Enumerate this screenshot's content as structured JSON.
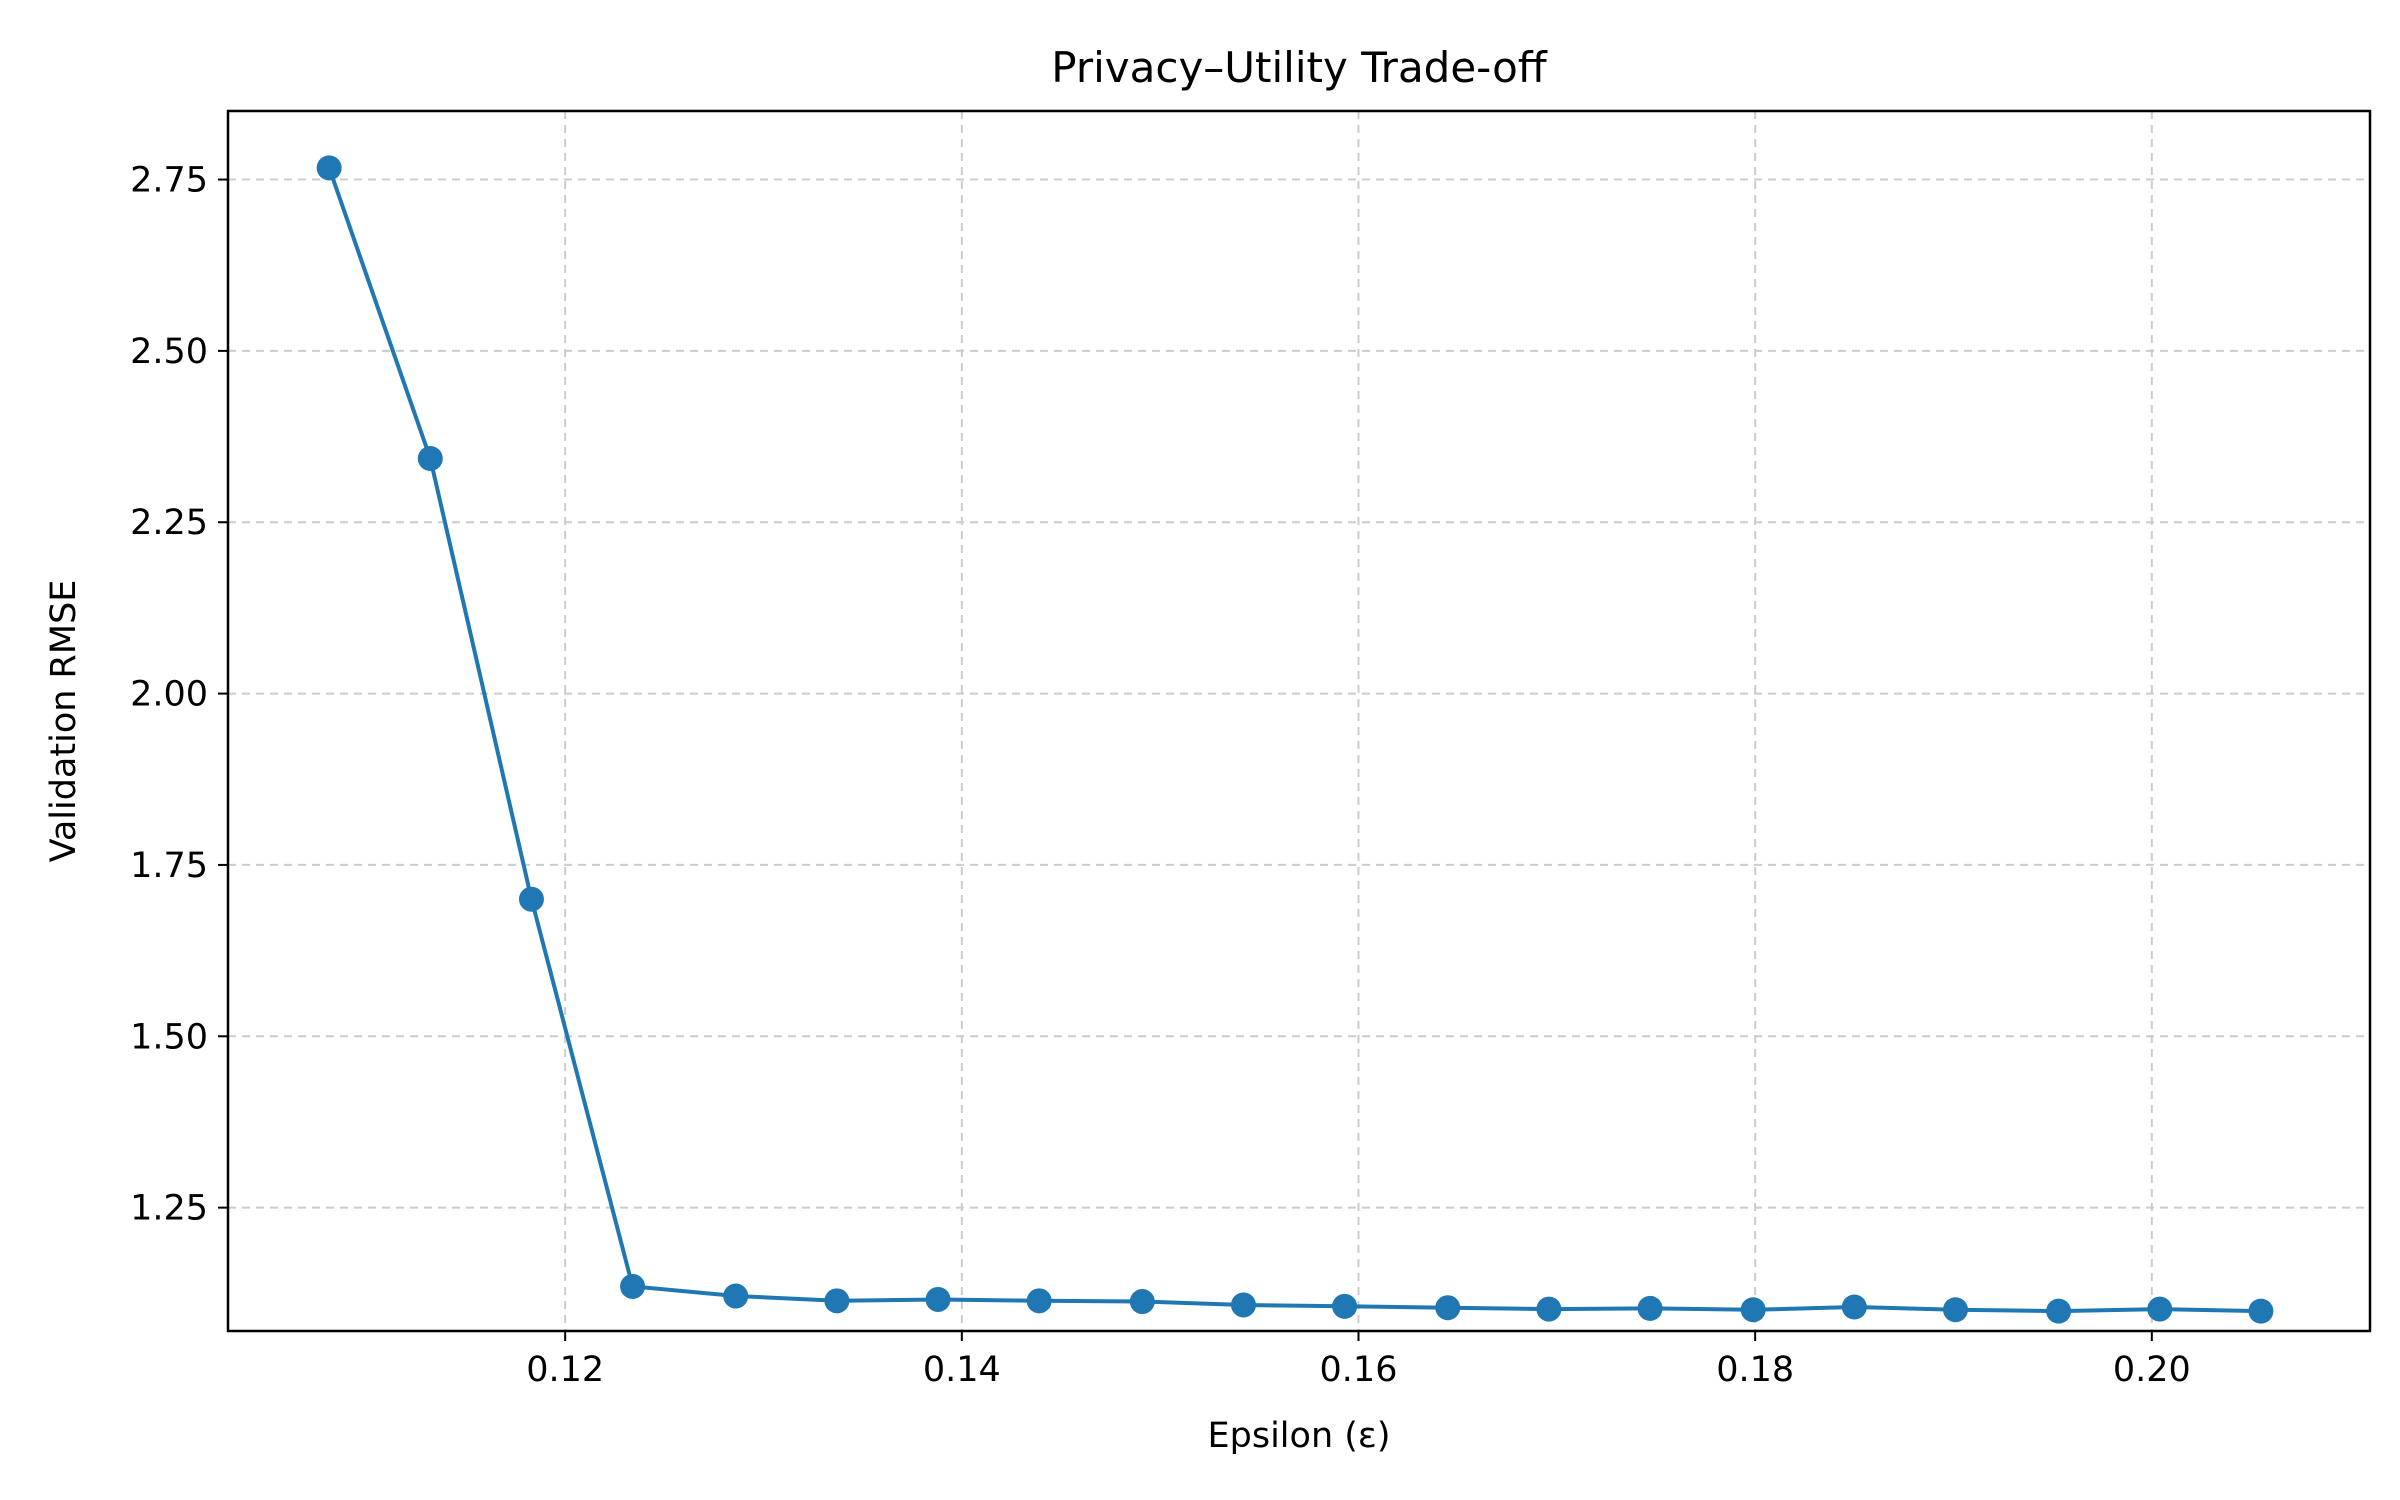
{
  "chart_data": {
    "type": "line",
    "title": "Privacy–Utility Trade-off",
    "xlabel": "Epsilon (ε)",
    "ylabel": "Validation RMSE",
    "xlim": [
      0.103,
      0.211
    ],
    "ylim": [
      1.07,
      2.85
    ],
    "xticks": [
      {
        "value": 0.12,
        "label": "0.12"
      },
      {
        "value": 0.14,
        "label": "0.14"
      },
      {
        "value": 0.16,
        "label": "0.16"
      },
      {
        "value": 0.18,
        "label": "0.18"
      },
      {
        "value": 0.2,
        "label": "0.20"
      }
    ],
    "yticks": [
      {
        "value": 1.25,
        "label": "1.25"
      },
      {
        "value": 1.5,
        "label": "1.50"
      },
      {
        "value": 1.75,
        "label": "1.75"
      },
      {
        "value": 2.0,
        "label": "2.00"
      },
      {
        "value": 2.25,
        "label": "2.25"
      },
      {
        "value": 2.5,
        "label": "2.50"
      },
      {
        "value": 2.75,
        "label": "2.75"
      }
    ],
    "grid": true,
    "grid_style": "dashed",
    "series": [
      {
        "color": "#1f77b4",
        "marker": "circle",
        "x": [
          0.1081,
          0.1132,
          0.1183,
          0.1234,
          0.1286,
          0.1337,
          0.1388,
          0.1439,
          0.1491,
          0.1542,
          0.1593,
          0.1645,
          0.1696,
          0.1747,
          0.1799,
          0.185,
          0.1901,
          0.1953,
          0.2004,
          0.2055
        ],
        "y": [
          2.767,
          2.343,
          1.7,
          1.135,
          1.121,
          1.114,
          1.116,
          1.114,
          1.113,
          1.108,
          1.106,
          1.104,
          1.102,
          1.103,
          1.101,
          1.105,
          1.101,
          1.099,
          1.102,
          1.099
        ]
      }
    ]
  }
}
